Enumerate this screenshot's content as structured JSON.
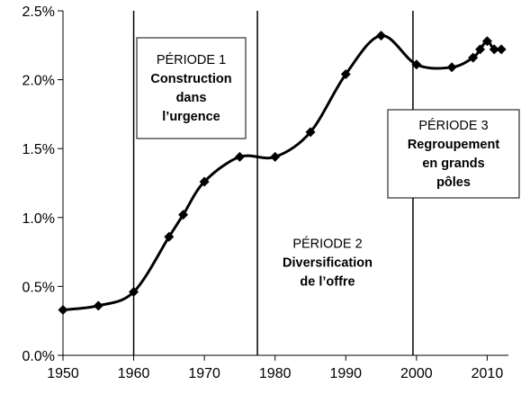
{
  "chart_data": {
    "type": "line",
    "xlim": [
      1950,
      2013
    ],
    "ylim": [
      0,
      2.5
    ],
    "x_ticks": [
      "1950",
      "1960",
      "1970",
      "1980",
      "1990",
      "2000",
      "2010"
    ],
    "y_ticks": [
      "0.0%",
      "0.5%",
      "1.0%",
      "1.5%",
      "2.0%",
      "2.5%"
    ],
    "grid": false,
    "legend": "none",
    "marker": "diamond",
    "series_color": "#000000",
    "x": [
      1950,
      1955,
      1960,
      1965,
      1967,
      1970,
      1975,
      1980,
      1985,
      1990,
      1995,
      2000,
      2005,
      2008,
      2009,
      2010,
      2011,
      2012
    ],
    "y": [
      0.33,
      0.36,
      0.46,
      0.86,
      1.02,
      1.26,
      1.44,
      1.44,
      1.62,
      2.04,
      2.32,
      2.11,
      2.09,
      2.16,
      2.22,
      2.28,
      2.22,
      2.22
    ],
    "period_boundaries": [
      1960,
      1977.5,
      1999.5
    ],
    "annotations": [
      {
        "title": "PÉRIODE 1",
        "lines": [
          "Construction",
          "dans",
          "l’urgence"
        ]
      },
      {
        "title": "PÉRIODE 2",
        "lines": [
          "Diversification",
          "de l’offre"
        ]
      },
      {
        "title": "PÉRIODE 3",
        "lines": [
          "Regroupement",
          "en grands",
          "pôles"
        ]
      }
    ]
  }
}
